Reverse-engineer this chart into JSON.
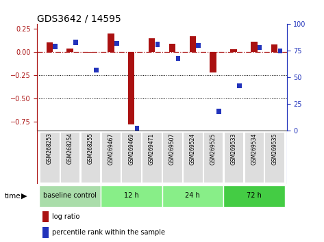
{
  "title": "GDS3642 / 14595",
  "samples": [
    "GSM268253",
    "GSM268254",
    "GSM268255",
    "GSM269467",
    "GSM269469",
    "GSM269471",
    "GSM269507",
    "GSM269524",
    "GSM269525",
    "GSM269533",
    "GSM269534",
    "GSM269535"
  ],
  "log_ratio": [
    0.1,
    0.04,
    -0.01,
    0.2,
    -0.78,
    0.15,
    0.09,
    0.17,
    -0.22,
    0.03,
    0.11,
    0.08
  ],
  "percentile_rank": [
    79,
    83,
    57,
    82,
    2,
    81,
    68,
    80,
    18,
    42,
    78,
    75
  ],
  "log_ratio_color": "#aa1111",
  "percentile_color": "#2233bb",
  "ylim_left": [
    -0.85,
    0.3
  ],
  "ylim_right": [
    0,
    100
  ],
  "yticks_left": [
    0.25,
    0,
    -0.25,
    -0.5,
    -0.75
  ],
  "yticks_right": [
    100,
    75,
    50,
    25,
    0
  ],
  "dotted_lines": [
    -0.25,
    -0.5
  ],
  "bar_width": 0.32,
  "pct_bar_width": 0.22,
  "groups": [
    {
      "label": "baseline control",
      "start": 0,
      "end": 3,
      "color": "#aaddaa"
    },
    {
      "label": "12 h",
      "start": 3,
      "end": 6,
      "color": "#88ee88"
    },
    {
      "label": "24 h",
      "start": 6,
      "end": 9,
      "color": "#88ee88"
    },
    {
      "label": "72 h",
      "start": 9,
      "end": 12,
      "color": "#44cc44"
    }
  ],
  "legend_log_ratio": "log ratio",
  "legend_percentile": "percentile rank within the sample",
  "time_label": "time",
  "background_color": "#ffffff",
  "plot_bg_color": "#ffffff",
  "sample_area_color": "#cccccc",
  "sample_cell_color": "#dddddd",
  "separator_color": "#aaaaaa"
}
